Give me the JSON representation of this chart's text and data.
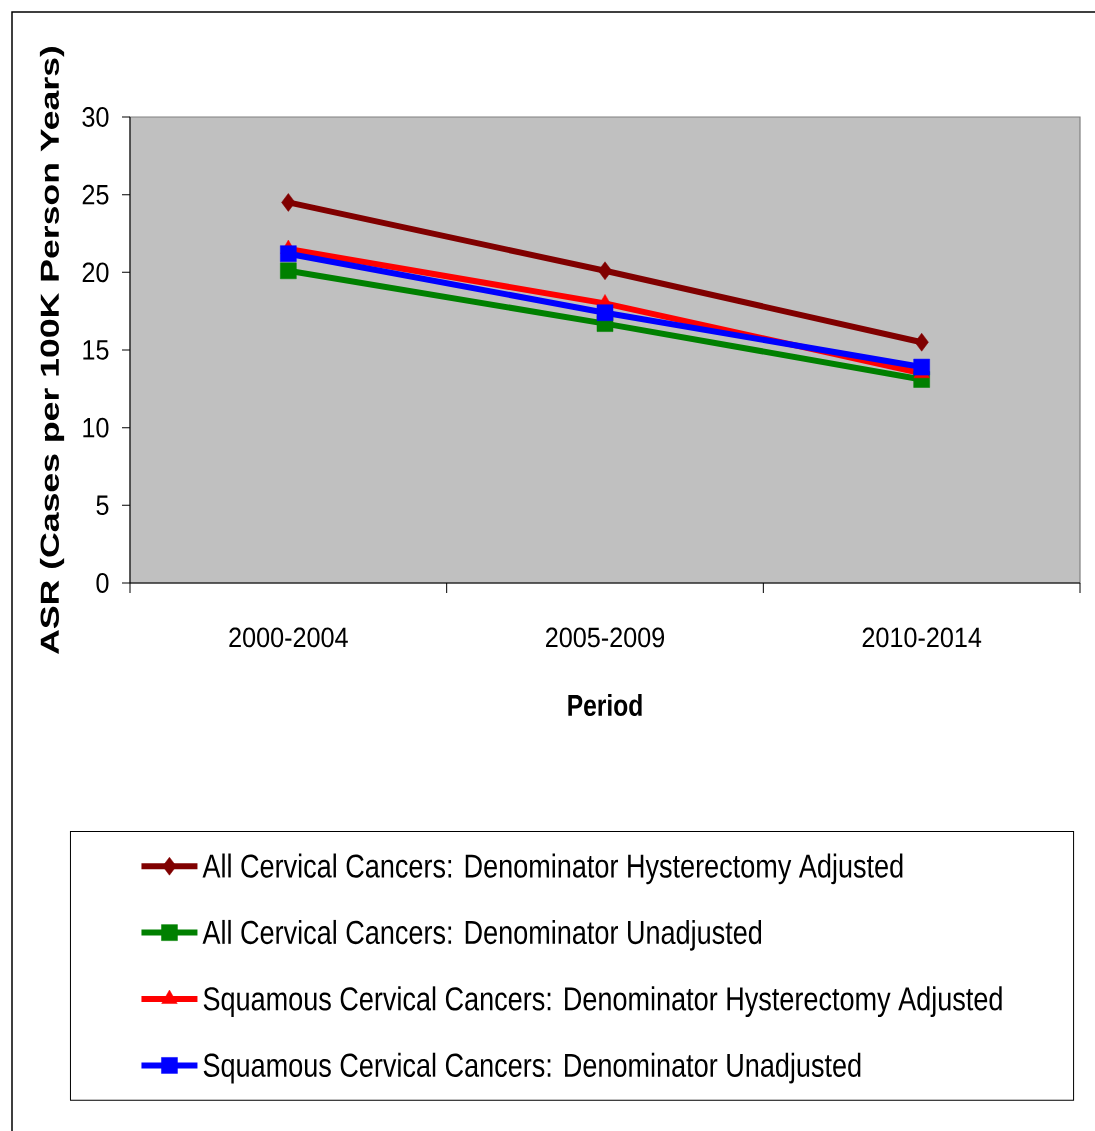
{
  "chart_data": {
    "type": "line",
    "xlabel": "Period",
    "ylabel": "ASR (Cases per 100K Person Years)",
    "categories": [
      "2000-2004",
      "2005-2009",
      "2010-2014"
    ],
    "ylim": [
      0,
      30
    ],
    "yticks": [
      0,
      5,
      10,
      15,
      20,
      25,
      30
    ],
    "legend": "bottom",
    "series": [
      {
        "name": "All Cervical Cancers: Denominator Hysterectomy Adjusted",
        "color": "#800000",
        "marker": "diamond",
        "values": [
          24.5,
          20.1,
          15.5
        ]
      },
      {
        "name": "All Cervical Cancers: Denominator Unadjusted",
        "color": "#008000",
        "marker": "square",
        "values": [
          20.1,
          16.7,
          13.1
        ]
      },
      {
        "name": "Squamous Cervical Cancers: Denominator Hysterectomy Adjusted",
        "color": "#ff0000",
        "marker": "triangle",
        "values": [
          21.5,
          18.0,
          13.5
        ]
      },
      {
        "name": "Squamous Cervical Cancers: Denominator Unadjusted",
        "color": "#0000ff",
        "marker": "square",
        "values": [
          21.2,
          17.4,
          13.9
        ]
      }
    ]
  }
}
